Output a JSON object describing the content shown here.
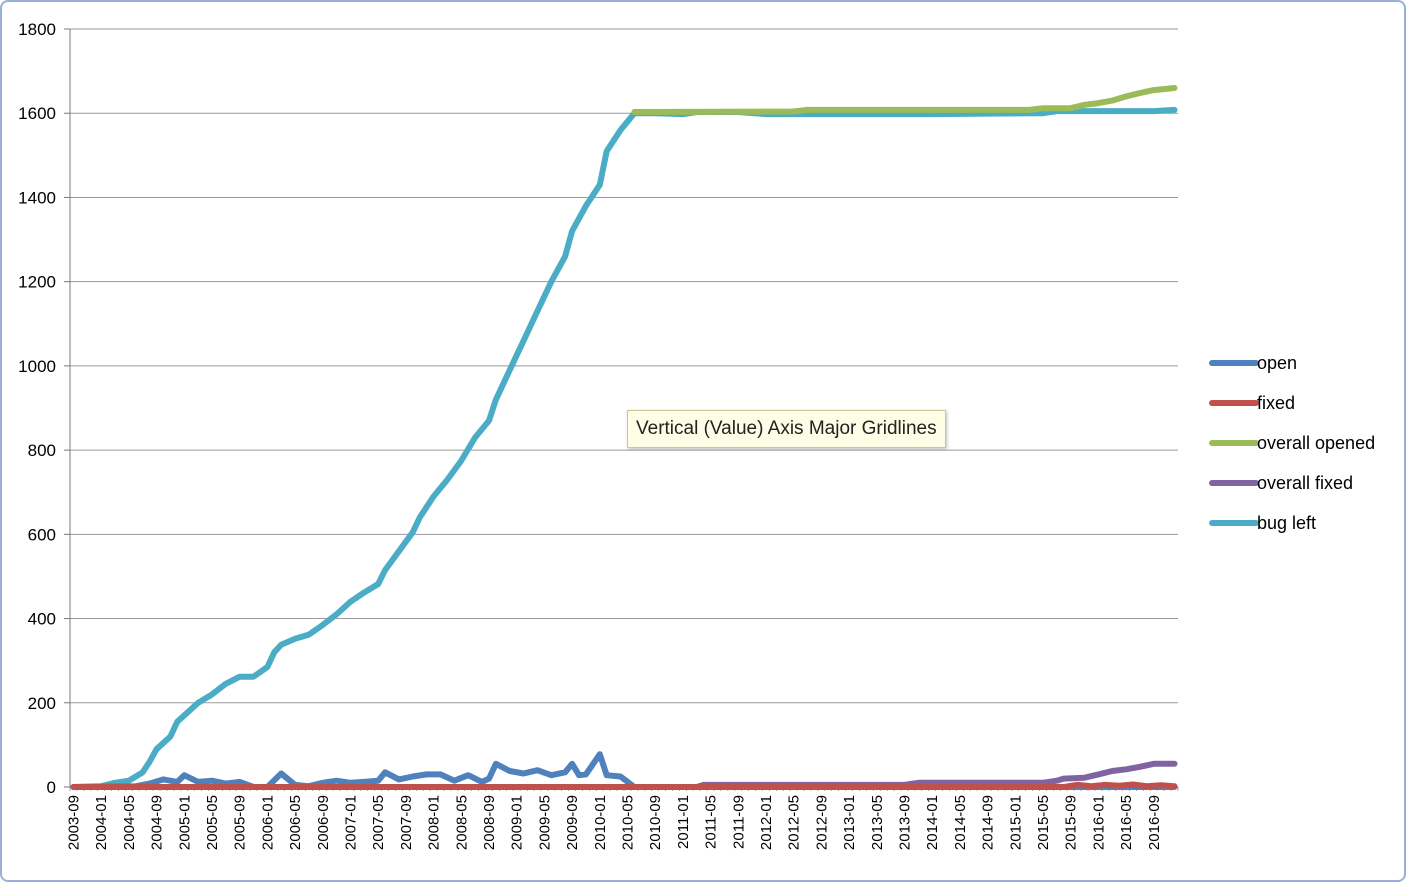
{
  "tooltip": {
    "text": "Vertical (Value) Axis Major Gridlines"
  },
  "chart_data": {
    "type": "line",
    "title": "",
    "xlabel": "",
    "ylabel": "",
    "ylim": [
      0,
      1800
    ],
    "y_ticks": [
      0,
      200,
      400,
      600,
      800,
      1000,
      1200,
      1400,
      1600,
      1800
    ],
    "grid": "horizontal major gridlines",
    "legend_position": "right",
    "x_start": "2003-09",
    "x_end": "2016-12",
    "x_tick_labels": [
      "2003-09",
      "2004-01",
      "2004-05",
      "2004-09",
      "2005-01",
      "2005-05",
      "2005-09",
      "2006-01",
      "2006-05",
      "2006-09",
      "2007-01",
      "2007-05",
      "2007-09",
      "2008-01",
      "2008-05",
      "2008-09",
      "2009-01",
      "2009-05",
      "2009-09",
      "2010-01",
      "2010-05",
      "2010-09",
      "2011-01",
      "2011-05",
      "2011-09",
      "2012-01",
      "2012-05",
      "2012-09",
      "2013-01",
      "2013-05",
      "2013-09",
      "2014-01",
      "2014-05",
      "2014-09",
      "2015-01",
      "2015-05",
      "2015-09",
      "2016-01",
      "2016-05",
      "2016-09"
    ],
    "series": [
      {
        "name": "bug left",
        "color": "#4bacc6",
        "points": [
          [
            "2003-09",
            0
          ],
          [
            "2004-01",
            2
          ],
          [
            "2004-03",
            10
          ],
          [
            "2004-05",
            15
          ],
          [
            "2004-07",
            35
          ],
          [
            "2004-08",
            60
          ],
          [
            "2004-09",
            90
          ],
          [
            "2004-11",
            120
          ],
          [
            "2004-12",
            155
          ],
          [
            "2005-01",
            170
          ],
          [
            "2005-03",
            200
          ],
          [
            "2005-05",
            220
          ],
          [
            "2005-07",
            245
          ],
          [
            "2005-09",
            262
          ],
          [
            "2005-11",
            262
          ],
          [
            "2006-01",
            285
          ],
          [
            "2006-02",
            320
          ],
          [
            "2006-03",
            338
          ],
          [
            "2006-05",
            352
          ],
          [
            "2006-07",
            362
          ],
          [
            "2006-09",
            385
          ],
          [
            "2006-11",
            410
          ],
          [
            "2007-01",
            440
          ],
          [
            "2007-03",
            462
          ],
          [
            "2007-05",
            482
          ],
          [
            "2007-06",
            515
          ],
          [
            "2007-08",
            560
          ],
          [
            "2007-10",
            605
          ],
          [
            "2007-11",
            640
          ],
          [
            "2008-01",
            690
          ],
          [
            "2008-03",
            730
          ],
          [
            "2008-05",
            775
          ],
          [
            "2008-07",
            830
          ],
          [
            "2008-09",
            870
          ],
          [
            "2008-10",
            920
          ],
          [
            "2008-12",
            990
          ],
          [
            "2009-02",
            1060
          ],
          [
            "2009-04",
            1130
          ],
          [
            "2009-06",
            1200
          ],
          [
            "2009-08",
            1260
          ],
          [
            "2009-09",
            1320
          ],
          [
            "2009-11",
            1380
          ],
          [
            "2010-01",
            1430
          ],
          [
            "2010-02",
            1510
          ],
          [
            "2010-04",
            1560
          ],
          [
            "2010-06",
            1600
          ],
          [
            "2010-09",
            1600
          ],
          [
            "2011-01",
            1598
          ],
          [
            "2011-03",
            1603
          ],
          [
            "2011-09",
            1603
          ],
          [
            "2012-01",
            1598
          ],
          [
            "2012-09",
            1598
          ],
          [
            "2014-01",
            1598
          ],
          [
            "2015-05",
            1600
          ],
          [
            "2015-07",
            1605
          ],
          [
            "2016-09",
            1605
          ],
          [
            "2016-12",
            1608
          ]
        ]
      },
      {
        "name": "overall opened",
        "color": "#9bbb59",
        "points": [
          [
            "2010-06",
            1603
          ],
          [
            "2012-05",
            1604
          ],
          [
            "2012-07",
            1608
          ],
          [
            "2015-03",
            1608
          ],
          [
            "2015-05",
            1612
          ],
          [
            "2015-09",
            1612
          ],
          [
            "2015-11",
            1620
          ],
          [
            "2016-01",
            1624
          ],
          [
            "2016-03",
            1630
          ],
          [
            "2016-05",
            1640
          ],
          [
            "2016-07",
            1648
          ],
          [
            "2016-09",
            1655
          ],
          [
            "2016-12",
            1660
          ]
        ]
      },
      {
        "name": "open",
        "color": "#4f81bd",
        "points": [
          [
            "2003-09",
            0
          ],
          [
            "2004-06",
            2
          ],
          [
            "2004-08",
            8
          ],
          [
            "2004-10",
            18
          ],
          [
            "2004-12",
            12
          ],
          [
            "2005-01",
            28
          ],
          [
            "2005-03",
            12
          ],
          [
            "2005-05",
            15
          ],
          [
            "2005-07",
            8
          ],
          [
            "2005-09",
            12
          ],
          [
            "2005-11",
            0
          ],
          [
            "2006-01",
            0
          ],
          [
            "2006-03",
            32
          ],
          [
            "2006-05",
            5
          ],
          [
            "2006-07",
            2
          ],
          [
            "2006-09",
            10
          ],
          [
            "2006-11",
            15
          ],
          [
            "2007-01",
            10
          ],
          [
            "2007-03",
            12
          ],
          [
            "2007-05",
            15
          ],
          [
            "2007-06",
            35
          ],
          [
            "2007-08",
            18
          ],
          [
            "2007-10",
            25
          ],
          [
            "2007-12",
            30
          ],
          [
            "2008-02",
            30
          ],
          [
            "2008-04",
            15
          ],
          [
            "2008-06",
            28
          ],
          [
            "2008-08",
            12
          ],
          [
            "2008-09",
            20
          ],
          [
            "2008-10",
            55
          ],
          [
            "2008-12",
            38
          ],
          [
            "2009-02",
            32
          ],
          [
            "2009-04",
            40
          ],
          [
            "2009-06",
            28
          ],
          [
            "2009-08",
            35
          ],
          [
            "2009-09",
            55
          ],
          [
            "2009-10",
            28
          ],
          [
            "2009-11",
            30
          ],
          [
            "2010-01",
            78
          ],
          [
            "2010-02",
            28
          ],
          [
            "2010-04",
            25
          ],
          [
            "2010-06",
            0
          ],
          [
            "2016-12",
            0
          ]
        ]
      },
      {
        "name": "overall fixed",
        "color": "#8064a2",
        "points": [
          [
            "2003-09",
            0
          ],
          [
            "2011-03",
            0
          ],
          [
            "2011-04",
            5
          ],
          [
            "2013-09",
            5
          ],
          [
            "2013-11",
            10
          ],
          [
            "2015-05",
            10
          ],
          [
            "2015-07",
            15
          ],
          [
            "2015-08",
            20
          ],
          [
            "2015-11",
            22
          ],
          [
            "2016-01",
            30
          ],
          [
            "2016-03",
            38
          ],
          [
            "2016-05",
            42
          ],
          [
            "2016-07",
            48
          ],
          [
            "2016-09",
            55
          ],
          [
            "2016-12",
            55
          ]
        ]
      },
      {
        "name": "fixed",
        "color": "#c0504d",
        "points": [
          [
            "2003-09",
            0
          ],
          [
            "2015-08",
            0
          ],
          [
            "2015-10",
            5
          ],
          [
            "2015-12",
            2
          ],
          [
            "2016-02",
            5
          ],
          [
            "2016-04",
            3
          ],
          [
            "2016-06",
            6
          ],
          [
            "2016-08",
            2
          ],
          [
            "2016-10",
            4
          ],
          [
            "2016-12",
            2
          ]
        ]
      }
    ],
    "legend_order": [
      "open",
      "fixed",
      "overall opened",
      "overall fixed",
      "bug left"
    ]
  }
}
